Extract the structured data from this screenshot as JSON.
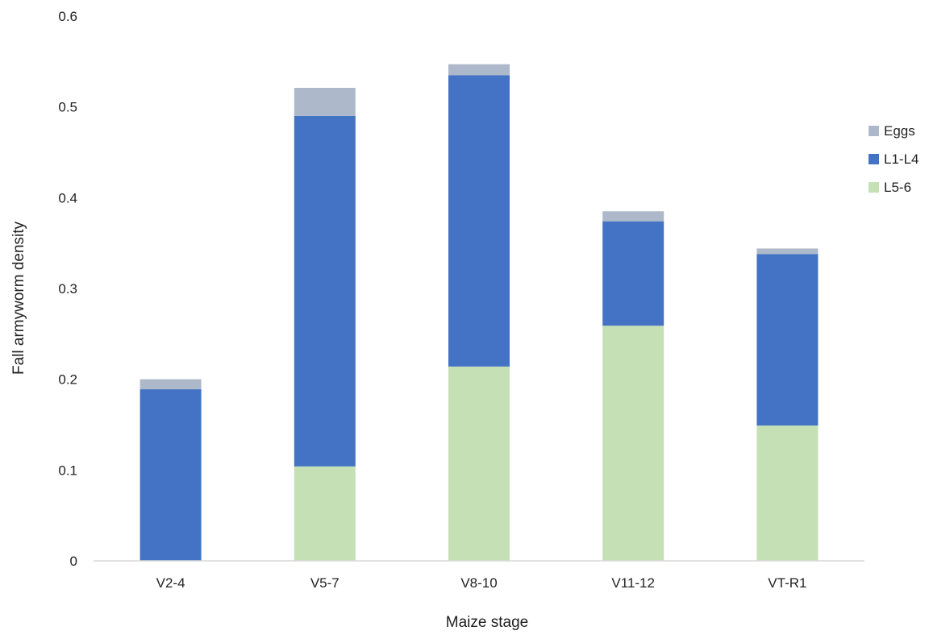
{
  "chart_data": {
    "type": "bar",
    "stacked": true,
    "title": "",
    "xlabel": "Maize stage",
    "ylabel": "Fall armyworm density",
    "categories": [
      "V2-4",
      "V5-7",
      "V8-10",
      "V11-12",
      "VT-R1"
    ],
    "series": [
      {
        "name": "L5-6",
        "color": "#c5e0b4",
        "values": [
          0,
          0.104,
          0.214,
          0.259,
          0.149
        ]
      },
      {
        "name": "L1-L4",
        "color": "#4472c4",
        "values": [
          0.189,
          0.386,
          0.321,
          0.115,
          0.189
        ]
      },
      {
        "name": "Eggs",
        "color": "#adb9ca",
        "values": [
          0.011,
          0.031,
          0.012,
          0.011,
          0.006
        ]
      }
    ],
    "ylim": [
      0,
      0.6
    ],
    "yticks": [
      "0",
      "0.1",
      "0.2",
      "0.3",
      "0.4",
      "0.5",
      "0.6"
    ],
    "legend_order": [
      "Eggs",
      "L1-L4",
      "L5-6"
    ],
    "legend_position": "right",
    "grid": false
  }
}
